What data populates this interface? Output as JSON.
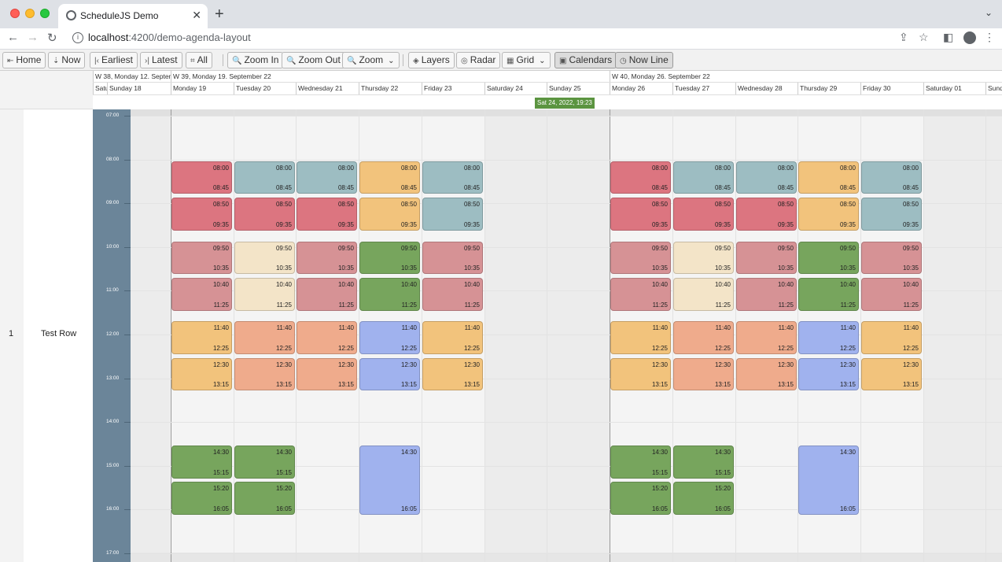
{
  "browser": {
    "tab_title": "ScheduleJS Demo",
    "tab_close": "✕",
    "new_tab": "+",
    "tab_menu": "⌄",
    "url_host": "localhost",
    "url_path": ":4200/demo-agenda-layout"
  },
  "toolbar": {
    "home": "Home",
    "now": "Now",
    "earliest": "Earliest",
    "latest": "Latest",
    "all": "All",
    "zoom_in": "Zoom In",
    "zoom_out": "Zoom Out",
    "zoom": "Zoom",
    "layers": "Layers",
    "radar": "Radar",
    "grid": "Grid",
    "calendars": "Calendars",
    "now_line": "Now Line"
  },
  "rows": [
    {
      "number": "1",
      "name": "Test Row"
    }
  ],
  "header": {
    "weeks": [
      {
        "label": "W 38, Monday 12. Septem"
      },
      {
        "label": "W 39, Monday 19. September 22"
      },
      {
        "label": "W 40, Monday 26. September 22"
      }
    ],
    "days": [
      "Satu",
      "Sunday 18",
      "Monday 19",
      "Tuesday 20",
      "Wednesday 21",
      "Thursday 22",
      "Friday 23",
      "Saturday 24",
      "Sunday 25",
      "Monday 26",
      "Tuesday 27",
      "Wednesday 28",
      "Thursday 29",
      "Friday 30",
      "Saturday 01",
      "Sunda"
    ],
    "now_badge": "Sat 24, 2022, 19:23"
  },
  "time_labels": [
    "07:00",
    "08:00",
    "09:00",
    "10:00",
    "11:00",
    "12:00",
    "13:00",
    "14:00",
    "15:00",
    "16:00",
    "17:00"
  ],
  "colors": {
    "red": "#dc7580",
    "bluegray": "#9dbdc2",
    "yellow": "#f2c37c",
    "rose": "#d69295",
    "cream": "#f3e4c8",
    "green": "#77a55d",
    "salmon": "#efab8c",
    "blue": "#a0b2ee"
  },
  "events": [
    {
      "day": 2,
      "start": "08:00",
      "end": "08:45",
      "color": "red"
    },
    {
      "day": 2,
      "start": "08:50",
      "end": "09:35",
      "color": "red"
    },
    {
      "day": 2,
      "start": "09:50",
      "end": "10:35",
      "color": "rose"
    },
    {
      "day": 2,
      "start": "10:40",
      "end": "11:25",
      "color": "rose"
    },
    {
      "day": 2,
      "start": "11:40",
      "end": "12:25",
      "color": "yellow"
    },
    {
      "day": 2,
      "start": "12:30",
      "end": "13:15",
      "color": "yellow"
    },
    {
      "day": 2,
      "start": "14:30",
      "end": "15:15",
      "color": "green"
    },
    {
      "day": 2,
      "start": "15:20",
      "end": "16:05",
      "color": "green"
    },
    {
      "day": 3,
      "start": "08:00",
      "end": "08:45",
      "color": "bluegray"
    },
    {
      "day": 3,
      "start": "08:50",
      "end": "09:35",
      "color": "red"
    },
    {
      "day": 3,
      "start": "09:50",
      "end": "10:35",
      "color": "cream"
    },
    {
      "day": 3,
      "start": "10:40",
      "end": "11:25",
      "color": "cream"
    },
    {
      "day": 3,
      "start": "11:40",
      "end": "12:25",
      "color": "salmon"
    },
    {
      "day": 3,
      "start": "12:30",
      "end": "13:15",
      "color": "salmon"
    },
    {
      "day": 3,
      "start": "14:30",
      "end": "15:15",
      "color": "green"
    },
    {
      "day": 3,
      "start": "15:20",
      "end": "16:05",
      "color": "green"
    },
    {
      "day": 4,
      "start": "08:00",
      "end": "08:45",
      "color": "bluegray"
    },
    {
      "day": 4,
      "start": "08:50",
      "end": "09:35",
      "color": "red"
    },
    {
      "day": 4,
      "start": "09:50",
      "end": "10:35",
      "color": "rose"
    },
    {
      "day": 4,
      "start": "10:40",
      "end": "11:25",
      "color": "rose"
    },
    {
      "day": 4,
      "start": "11:40",
      "end": "12:25",
      "color": "salmon"
    },
    {
      "day": 4,
      "start": "12:30",
      "end": "13:15",
      "color": "salmon"
    },
    {
      "day": 5,
      "start": "08:00",
      "end": "08:45",
      "color": "yellow"
    },
    {
      "day": 5,
      "start": "08:50",
      "end": "09:35",
      "color": "yellow"
    },
    {
      "day": 5,
      "start": "09:50",
      "end": "10:35",
      "color": "green"
    },
    {
      "day": 5,
      "start": "10:40",
      "end": "11:25",
      "color": "green"
    },
    {
      "day": 5,
      "start": "11:40",
      "end": "12:25",
      "color": "blue"
    },
    {
      "day": 5,
      "start": "12:30",
      "end": "13:15",
      "color": "blue"
    },
    {
      "day": 5,
      "start": "14:30",
      "end": "16:05",
      "color": "blue"
    },
    {
      "day": 6,
      "start": "08:00",
      "end": "08:45",
      "color": "bluegray"
    },
    {
      "day": 6,
      "start": "08:50",
      "end": "09:35",
      "color": "bluegray"
    },
    {
      "day": 6,
      "start": "09:50",
      "end": "10:35",
      "color": "rose"
    },
    {
      "day": 6,
      "start": "10:40",
      "end": "11:25",
      "color": "rose"
    },
    {
      "day": 6,
      "start": "11:40",
      "end": "12:25",
      "color": "yellow"
    },
    {
      "day": 6,
      "start": "12:30",
      "end": "13:15",
      "color": "yellow"
    },
    {
      "day": 9,
      "start": "08:00",
      "end": "08:45",
      "color": "red"
    },
    {
      "day": 9,
      "start": "08:50",
      "end": "09:35",
      "color": "red"
    },
    {
      "day": 9,
      "start": "09:50",
      "end": "10:35",
      "color": "rose"
    },
    {
      "day": 9,
      "start": "10:40",
      "end": "11:25",
      "color": "rose"
    },
    {
      "day": 9,
      "start": "11:40",
      "end": "12:25",
      "color": "yellow"
    },
    {
      "day": 9,
      "start": "12:30",
      "end": "13:15",
      "color": "yellow"
    },
    {
      "day": 9,
      "start": "14:30",
      "end": "15:15",
      "color": "green"
    },
    {
      "day": 9,
      "start": "15:20",
      "end": "16:05",
      "color": "green"
    },
    {
      "day": 10,
      "start": "08:00",
      "end": "08:45",
      "color": "bluegray"
    },
    {
      "day": 10,
      "start": "08:50",
      "end": "09:35",
      "color": "red"
    },
    {
      "day": 10,
      "start": "09:50",
      "end": "10:35",
      "color": "cream"
    },
    {
      "day": 10,
      "start": "10:40",
      "end": "11:25",
      "color": "cream"
    },
    {
      "day": 10,
      "start": "11:40",
      "end": "12:25",
      "color": "salmon"
    },
    {
      "day": 10,
      "start": "12:30",
      "end": "13:15",
      "color": "salmon"
    },
    {
      "day": 10,
      "start": "14:30",
      "end": "15:15",
      "color": "green"
    },
    {
      "day": 10,
      "start": "15:20",
      "end": "16:05",
      "color": "green"
    },
    {
      "day": 11,
      "start": "08:00",
      "end": "08:45",
      "color": "bluegray"
    },
    {
      "day": 11,
      "start": "08:50",
      "end": "09:35",
      "color": "red"
    },
    {
      "day": 11,
      "start": "09:50",
      "end": "10:35",
      "color": "rose"
    },
    {
      "day": 11,
      "start": "10:40",
      "end": "11:25",
      "color": "rose"
    },
    {
      "day": 11,
      "start": "11:40",
      "end": "12:25",
      "color": "salmon"
    },
    {
      "day": 11,
      "start": "12:30",
      "end": "13:15",
      "color": "salmon"
    },
    {
      "day": 12,
      "start": "08:00",
      "end": "08:45",
      "color": "yellow"
    },
    {
      "day": 12,
      "start": "08:50",
      "end": "09:35",
      "color": "yellow"
    },
    {
      "day": 12,
      "start": "09:50",
      "end": "10:35",
      "color": "green"
    },
    {
      "day": 12,
      "start": "10:40",
      "end": "11:25",
      "color": "green"
    },
    {
      "day": 12,
      "start": "11:40",
      "end": "12:25",
      "color": "blue"
    },
    {
      "day": 12,
      "start": "12:30",
      "end": "13:15",
      "color": "blue"
    },
    {
      "day": 12,
      "start": "14:30",
      "end": "16:05",
      "color": "blue"
    },
    {
      "day": 13,
      "start": "08:00",
      "end": "08:45",
      "color": "bluegray"
    },
    {
      "day": 13,
      "start": "08:50",
      "end": "09:35",
      "color": "bluegray"
    },
    {
      "day": 13,
      "start": "09:50",
      "end": "10:35",
      "color": "rose"
    },
    {
      "day": 13,
      "start": "10:40",
      "end": "11:25",
      "color": "rose"
    },
    {
      "day": 13,
      "start": "11:40",
      "end": "12:25",
      "color": "yellow"
    },
    {
      "day": 13,
      "start": "12:30",
      "end": "13:15",
      "color": "yellow"
    }
  ]
}
